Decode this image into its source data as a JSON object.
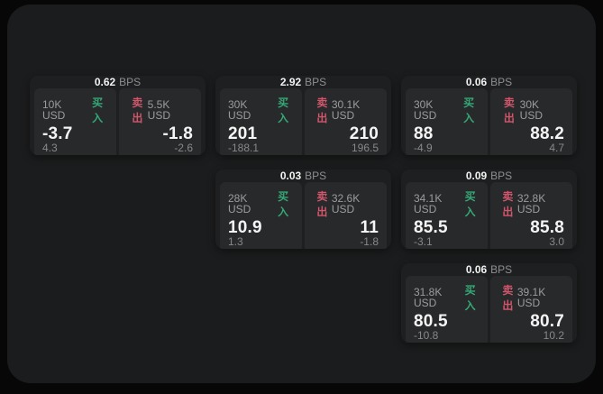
{
  "app": {
    "unit_label": "BPS",
    "buy_label": "买入",
    "sell_label": "卖出"
  },
  "colors": {
    "buy_green": "#35a876",
    "sell_red": "#d2566b",
    "panel_bg": "#1b1c1d",
    "card_bg": "#1e1f20",
    "subpanel_bg": "#28292b",
    "outer_bg": "#070708"
  },
  "cards": [
    {
      "col": 1,
      "row": 1,
      "bps": "0.62",
      "buy": {
        "amount": "10K USD",
        "price": "-3.7",
        "sub": "4.3"
      },
      "sell": {
        "amount": "5.5K USD",
        "price": "-1.8",
        "sub": "-2.6"
      }
    },
    {
      "col": 2,
      "row": 1,
      "bps": "2.92",
      "buy": {
        "amount": "30K USD",
        "price": "201",
        "sub": "-188.1"
      },
      "sell": {
        "amount": "30.1K USD",
        "price": "210",
        "sub": "196.5"
      }
    },
    {
      "col": 3,
      "row": 1,
      "bps": "0.06",
      "buy": {
        "amount": "30K USD",
        "price": "88",
        "sub": "-4.9"
      },
      "sell": {
        "amount": "30K USD",
        "price": "88.2",
        "sub": "4.7"
      }
    },
    {
      "col": 2,
      "row": 2,
      "bps": "0.03",
      "buy": {
        "amount": "28K USD",
        "price": "10.9",
        "sub": "1.3"
      },
      "sell": {
        "amount": "32.6K USD",
        "price": "11",
        "sub": "-1.8"
      }
    },
    {
      "col": 3,
      "row": 2,
      "bps": "0.09",
      "buy": {
        "amount": "34.1K USD",
        "price": "85.5",
        "sub": "-3.1"
      },
      "sell": {
        "amount": "32.8K USD",
        "price": "85.8",
        "sub": "3.0"
      }
    },
    {
      "col": 3,
      "row": 3,
      "bps": "0.06",
      "buy": {
        "amount": "31.8K USD",
        "price": "80.5",
        "sub": "-10.8"
      },
      "sell": {
        "amount": "39.1K USD",
        "price": "80.7",
        "sub": "10.2"
      }
    }
  ]
}
